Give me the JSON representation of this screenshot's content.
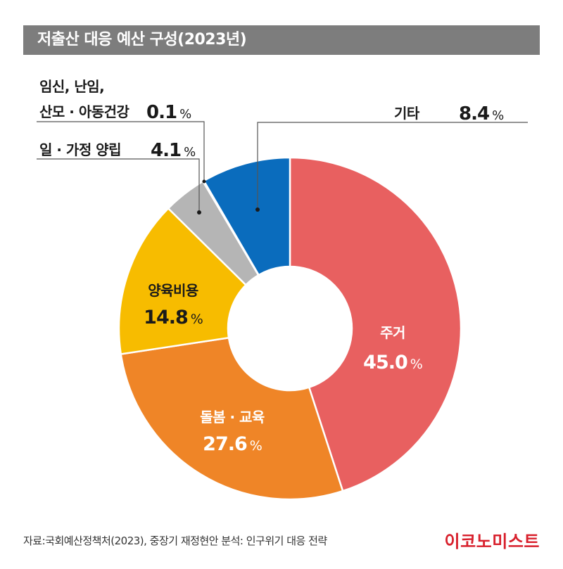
{
  "title": "저출산 대응 예산 구성(2023년)",
  "source": "자료:국회예산정책처(2023), 중장기 재정현안 분석: 인구위기 대응 전략",
  "brand": "이코노미스트",
  "colors": {
    "title_bar": "#7d7d7d",
    "brand": "#d8202c",
    "leader_line": "#555555"
  },
  "chart_data": {
    "type": "pie",
    "donut": true,
    "unit": "%",
    "slices": [
      {
        "label": "주거",
        "value": 45.0,
        "display": "45.0",
        "color": "#e86060",
        "label_color": "#ffffff"
      },
      {
        "label": "돌봄 · 교육",
        "value": 27.6,
        "display": "27.6",
        "color": "#ef8527",
        "label_color": "#ffffff"
      },
      {
        "label": "양육비용",
        "value": 14.8,
        "display": "14.8",
        "color": "#f7bc00",
        "label_color": "#1a1a1a"
      },
      {
        "label": "일 · 가정 양립",
        "value": 4.1,
        "display": "4.1",
        "color": "#b5b5b5",
        "label_color": "#1a1a1a"
      },
      {
        "label_lines": [
          "임신, 난임,",
          "산모 · 아동건강"
        ],
        "label": "임신, 난임, 산모 · 아동건강",
        "value": 0.1,
        "display": "0.1",
        "color": "#8a8a8a",
        "label_color": "#1a1a1a"
      },
      {
        "label": "기타",
        "value": 8.4,
        "display": "8.4",
        "color": "#0a6cbd",
        "label_color": "#1a1a1a"
      }
    ]
  }
}
